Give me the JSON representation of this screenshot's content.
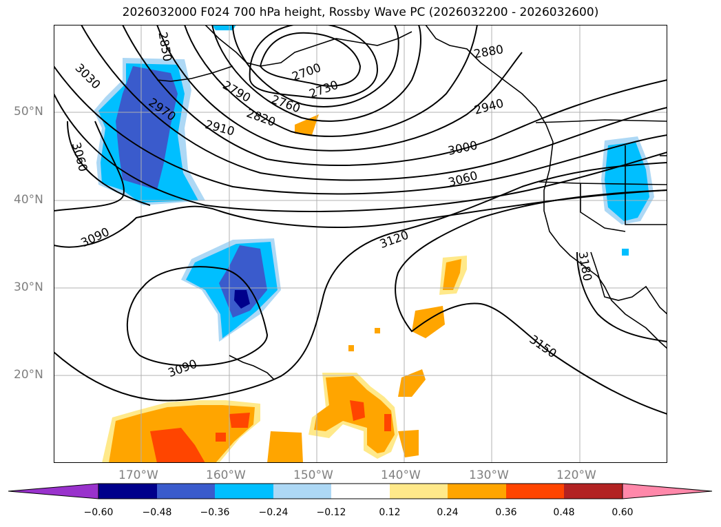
{
  "title": "2026032000 F024 700 hPa height, Rossby Wave PC (2026032200 - 2026032600)",
  "map": {
    "longitude_labels": [
      "170°W",
      "160°W",
      "150°W",
      "140°W",
      "130°W",
      "120°W"
    ],
    "latitude_labels": [
      "50°N",
      "40°N",
      "30°N",
      "20°N"
    ],
    "contour_labels": [
      "2850",
      "2700",
      "2880",
      "3030",
      "2790",
      "2730",
      "2760",
      "2970",
      "2820",
      "2940",
      "2910",
      "3000",
      "3060",
      "3060",
      "3090",
      "3120",
      "3180",
      "3090",
      "3150"
    ],
    "colors": {
      "land_line": "#000000",
      "grid": "#b0b0b0"
    }
  },
  "colorbar": {
    "ticks": [
      "−0.60",
      "−0.48",
      "−0.36",
      "−0.24",
      "−0.12",
      "0.12",
      "0.24",
      "0.36",
      "0.48",
      "0.60"
    ],
    "colors": [
      "#9932cc",
      "#00008b",
      "#3a5bcc",
      "#00bfff",
      "#add8f5",
      "#ffffff",
      "#ffe98a",
      "#ffa500",
      "#ff4500",
      "#b22222",
      "#ff88aa"
    ]
  }
}
